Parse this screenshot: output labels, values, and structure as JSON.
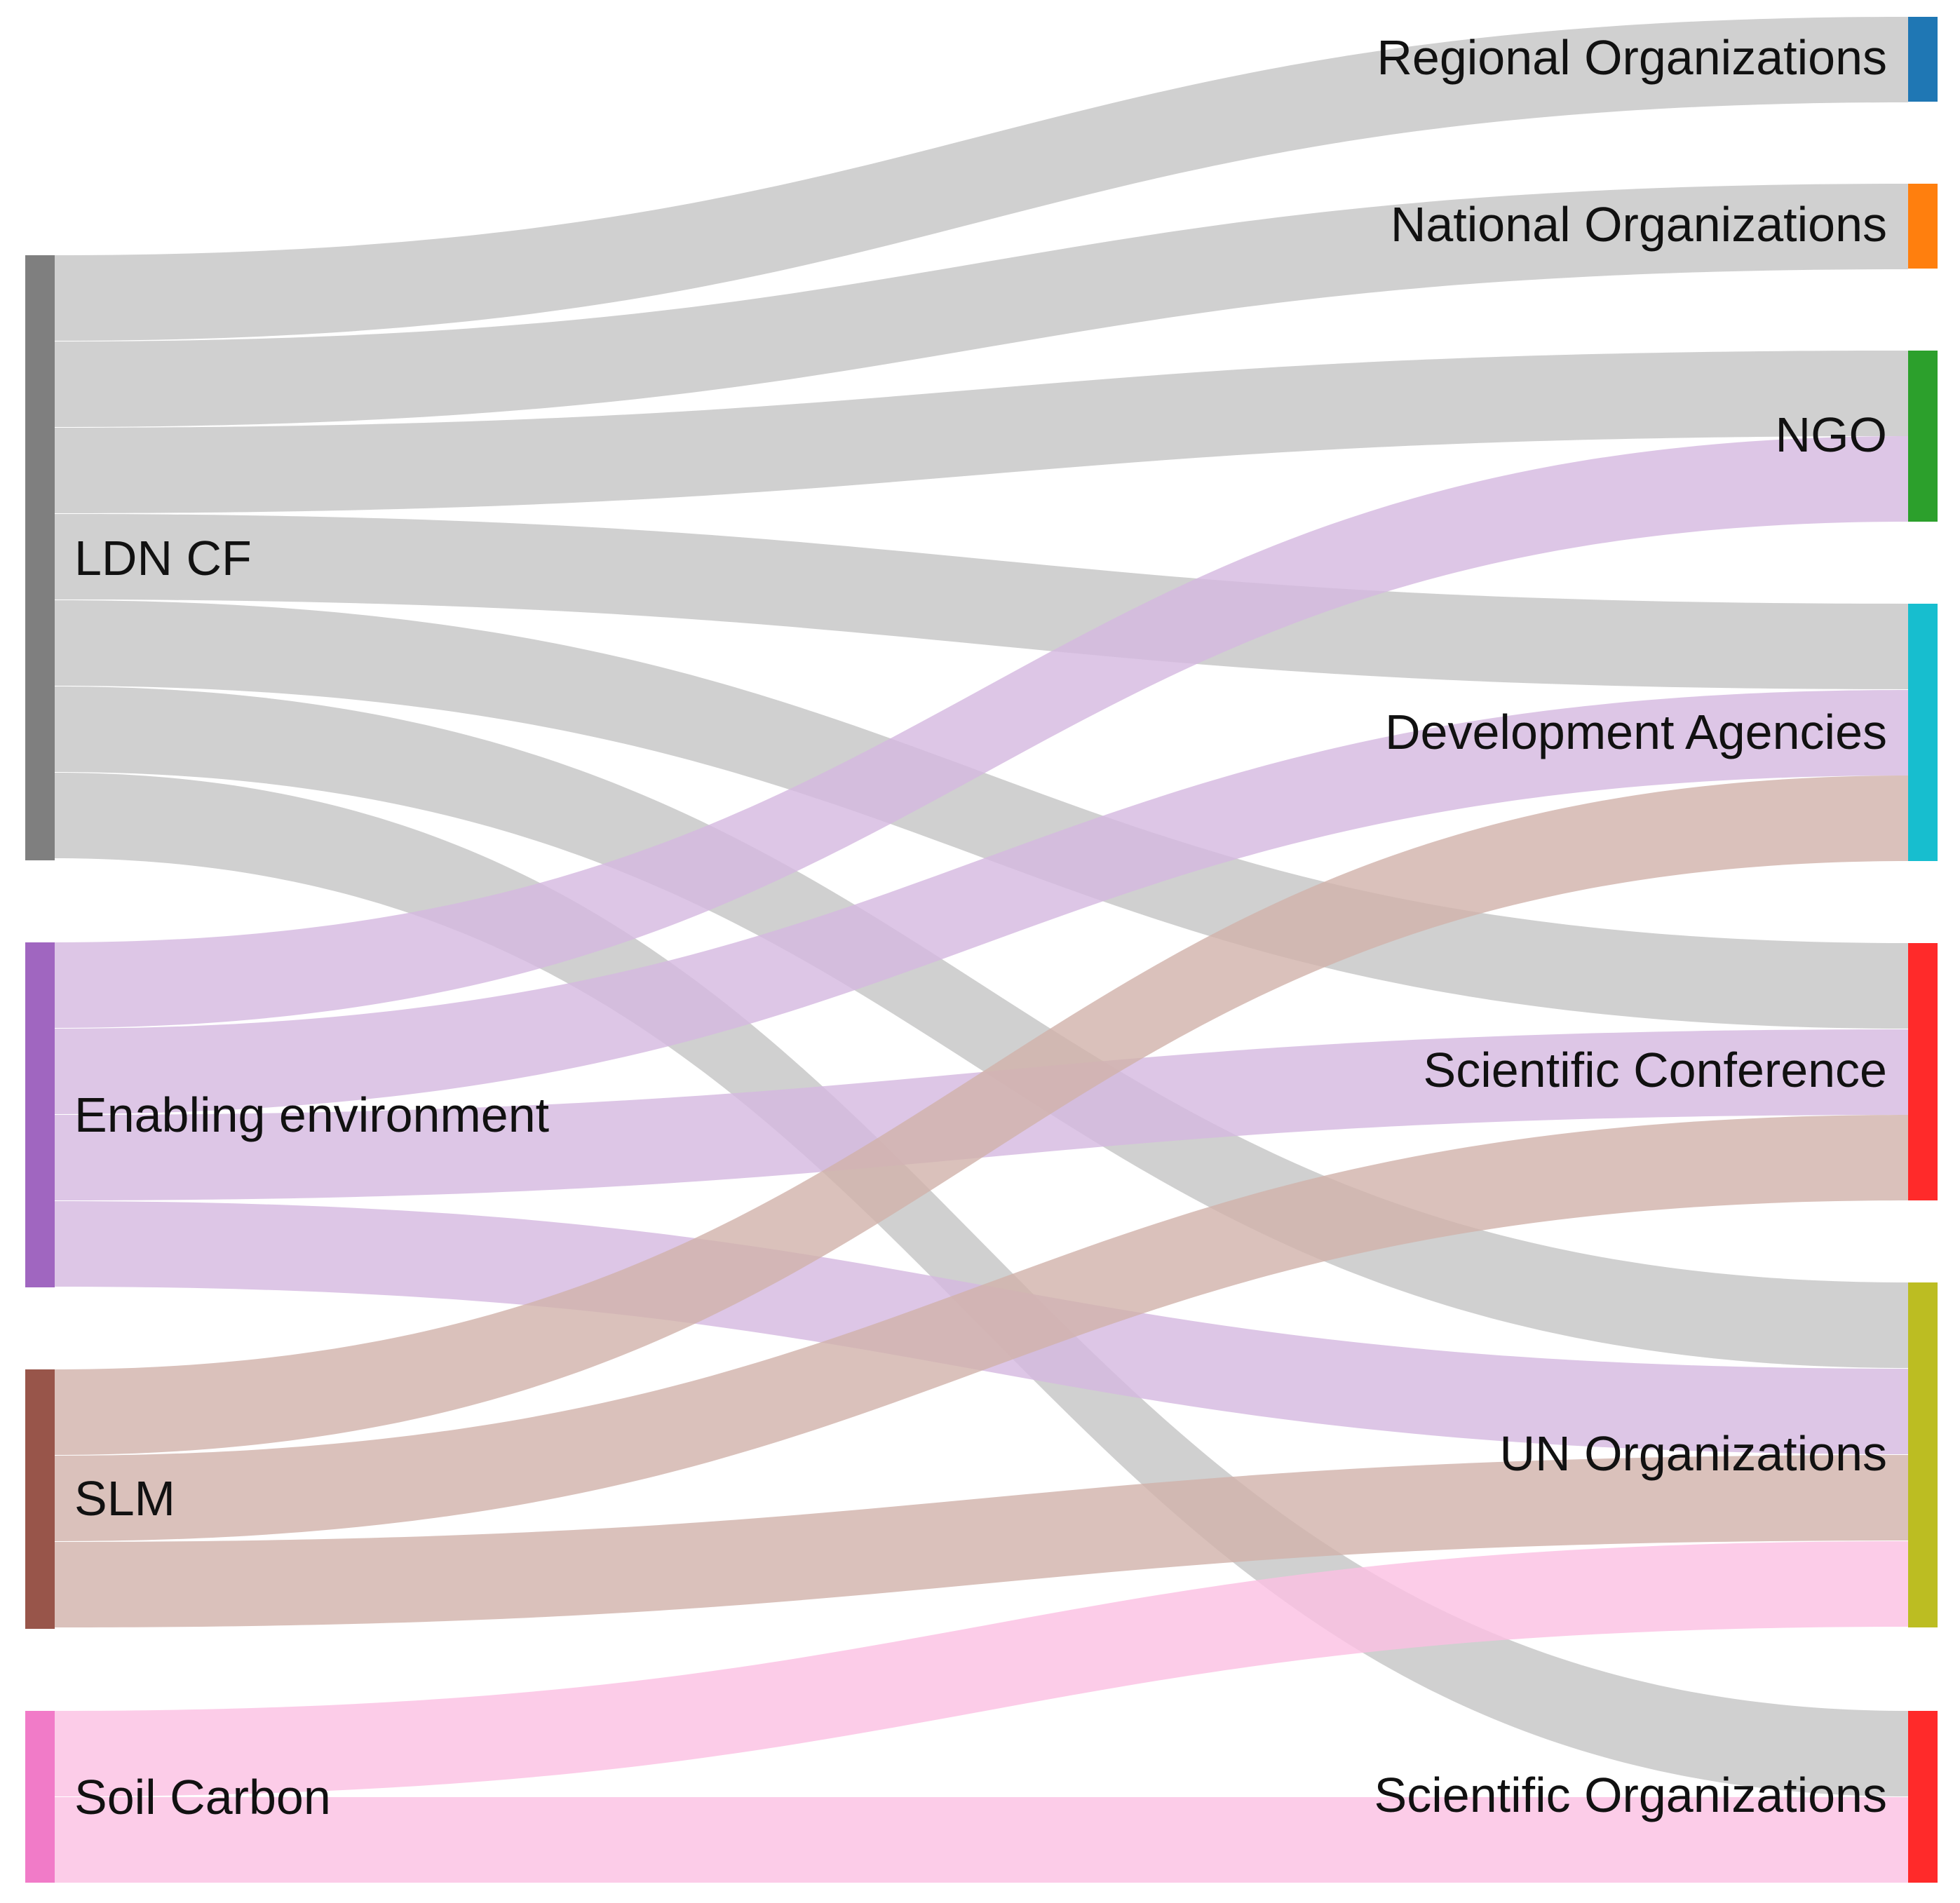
{
  "diagram": {
    "type": "sankey",
    "sources": [
      {
        "id": "ldn",
        "label": "LDN CF",
        "color": "#7f7f7f",
        "link_color": "#c4c4c4"
      },
      {
        "id": "env",
        "label": "Enabling environment",
        "color": "#a066c0",
        "link_color": "#d4b8e0"
      },
      {
        "id": "slm",
        "label": "SLM",
        "color": "#98554a",
        "link_color": "#d1b1aa"
      },
      {
        "id": "soil",
        "label": "Soil Carbon",
        "color": "#f17bc8",
        "link_color": "#fbbfe2"
      }
    ],
    "targets": [
      {
        "id": "regional",
        "label": "Regional Organizations",
        "color": "#1f77b4"
      },
      {
        "id": "national",
        "label": "National Organizations",
        "color": "#ff7f0e"
      },
      {
        "id": "ngo",
        "label": "NGO",
        "color": "#2ca02c"
      },
      {
        "id": "devag",
        "label": "Development Agencies",
        "color": "#17becf"
      },
      {
        "id": "scicon",
        "label": "Scientific Conference",
        "color": "#ff2a2a"
      },
      {
        "id": "un",
        "label": "UN Organizations",
        "color": "#bcbd22"
      },
      {
        "id": "sciorg",
        "label": "Scientific Organizations",
        "color": "#ff2a2a"
      }
    ],
    "links": [
      {
        "source": "ldn",
        "target": "regional",
        "value": 1
      },
      {
        "source": "ldn",
        "target": "national",
        "value": 1
      },
      {
        "source": "ldn",
        "target": "ngo",
        "value": 1
      },
      {
        "source": "ldn",
        "target": "devag",
        "value": 1
      },
      {
        "source": "ldn",
        "target": "scicon",
        "value": 1
      },
      {
        "source": "ldn",
        "target": "un",
        "value": 1
      },
      {
        "source": "ldn",
        "target": "sciorg",
        "value": 1
      },
      {
        "source": "env",
        "target": "ngo",
        "value": 1
      },
      {
        "source": "env",
        "target": "devag",
        "value": 1
      },
      {
        "source": "env",
        "target": "scicon",
        "value": 1
      },
      {
        "source": "env",
        "target": "un",
        "value": 1
      },
      {
        "source": "slm",
        "target": "devag",
        "value": 1
      },
      {
        "source": "slm",
        "target": "scicon",
        "value": 1
      },
      {
        "source": "slm",
        "target": "un",
        "value": 1
      },
      {
        "source": "soil",
        "target": "un",
        "value": 1
      },
      {
        "source": "soil",
        "target": "sciorg",
        "value": 1
      }
    ]
  }
}
